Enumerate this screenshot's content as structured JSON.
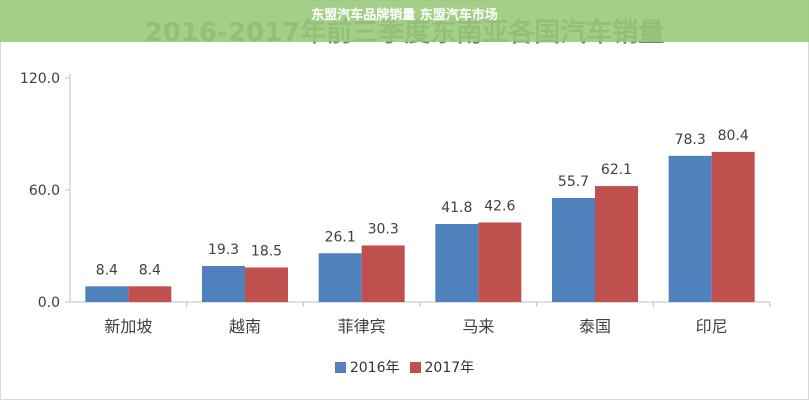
{
  "overlay": {
    "caption": "东盟汽车品牌销量 东盟汽车市场"
  },
  "chart_data": {
    "type": "bar",
    "title": "2016-2017年前三季度东南亚各国汽车销量",
    "categories": [
      "新加坡",
      "越南",
      "菲律宾",
      "马来",
      "泰国",
      "印尼"
    ],
    "series": [
      {
        "name": "2016年",
        "values": [
          8.4,
          19.3,
          26.1,
          41.8,
          55.7,
          78.3
        ],
        "labels": [
          "8.4",
          "19.3",
          "26.1",
          "41.8",
          "55.7",
          "78.3"
        ],
        "color": "#4f81bd"
      },
      {
        "name": "2017年",
        "values": [
          8.4,
          18.5,
          30.3,
          42.6,
          62.1,
          80.4
        ],
        "labels": [
          "8.4",
          "18.5",
          "30.3",
          "42.6",
          "62.1",
          "80.4"
        ],
        "color": "#c0504d"
      }
    ],
    "ylim": [
      0,
      120
    ],
    "yticks": [
      "0.0",
      "60.0",
      "120.0"
    ],
    "ytick_values": [
      0,
      60,
      120
    ],
    "xlabel": "",
    "ylabel": "",
    "grid": false,
    "legend_position": "bottom"
  }
}
